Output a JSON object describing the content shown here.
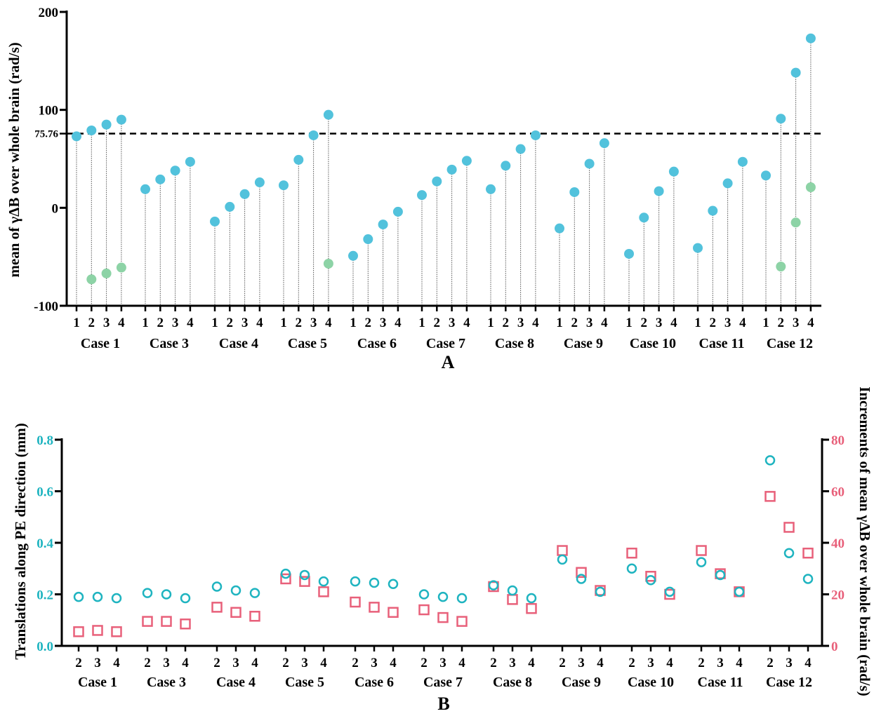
{
  "chart_data": [
    {
      "panel": "A",
      "type": "scatter",
      "ylabel": "mean of γΔB over whole brain (rad/s)",
      "ylim": [
        -100,
        200
      ],
      "yticks": [
        -100,
        0,
        100,
        200
      ],
      "reference_line": {
        "value": 75.76,
        "label": "75.76",
        "style": "dashed"
      },
      "cases": [
        {
          "label": "Case 1",
          "ticks": [
            "1",
            "2",
            "3",
            "4"
          ],
          "values": [
            73,
            79,
            85,
            90
          ],
          "low_values": [
            null,
            -73,
            -67,
            -61
          ]
        },
        {
          "label": "Case 3",
          "ticks": [
            "1",
            "2",
            "3",
            "4"
          ],
          "values": [
            19,
            29,
            38,
            47
          ],
          "low_values": [
            null,
            null,
            null,
            null
          ]
        },
        {
          "label": "Case 4",
          "ticks": [
            "1",
            "2",
            "3",
            "4"
          ],
          "values": [
            -14,
            1,
            14,
            26
          ],
          "low_values": [
            null,
            null,
            null,
            null
          ]
        },
        {
          "label": "Case 5",
          "ticks": [
            "1",
            "2",
            "3",
            "4"
          ],
          "values": [
            23,
            49,
            74,
            95
          ],
          "low_values": [
            null,
            null,
            null,
            -57
          ]
        },
        {
          "label": "Case 6",
          "ticks": [
            "1",
            "2",
            "3",
            "4"
          ],
          "values": [
            -49,
            -32,
            -17,
            -4
          ],
          "low_values": [
            null,
            null,
            null,
            null
          ]
        },
        {
          "label": "Case 7",
          "ticks": [
            "1",
            "2",
            "3",
            "4"
          ],
          "values": [
            13,
            27,
            39,
            48
          ],
          "low_values": [
            null,
            null,
            null,
            null
          ]
        },
        {
          "label": "Case 8",
          "ticks": [
            "1",
            "2",
            "3",
            "4"
          ],
          "values": [
            19,
            43,
            60,
            74
          ],
          "low_values": [
            null,
            null,
            null,
            null
          ]
        },
        {
          "label": "Case 9",
          "ticks": [
            "1",
            "2",
            "3",
            "4"
          ],
          "values": [
            -21,
            16,
            45,
            66
          ],
          "low_values": [
            null,
            null,
            null,
            null
          ]
        },
        {
          "label": "Case 10",
          "ticks": [
            "1",
            "2",
            "3",
            "4"
          ],
          "values": [
            -47,
            -10,
            17,
            37
          ],
          "low_values": [
            null,
            null,
            null,
            null
          ]
        },
        {
          "label": "Case 11",
          "ticks": [
            "1",
            "2",
            "3",
            "4"
          ],
          "values": [
            -41,
            -3,
            25,
            47
          ],
          "low_values": [
            null,
            null,
            null,
            null
          ]
        },
        {
          "label": "Case 12",
          "ticks": [
            "1",
            "2",
            "3",
            "4"
          ],
          "values": [
            33,
            91,
            138,
            173
          ],
          "low_values": [
            null,
            -60,
            -15,
            21
          ]
        }
      ],
      "colors": {
        "values": "#52c2dc",
        "low_values": "#8dd3a6"
      }
    },
    {
      "panel": "B",
      "type": "scatter",
      "ylabel_left": "Translations along PE direction (mm)",
      "ylabel_right": "Increments of mean γΔB over whole brain (rad/s)",
      "ylim_left": [
        0.0,
        0.8
      ],
      "ylim_right": [
        0,
        80
      ],
      "yticks_left": [
        "0.0",
        "0.2",
        "0.4",
        "0.6",
        "0.8"
      ],
      "yticks_right": [
        "0",
        "20",
        "40",
        "60",
        "80"
      ],
      "cases": [
        {
          "label": "Case 1",
          "ticks": [
            "2",
            "3",
            "4"
          ],
          "translation": [
            0.19,
            0.19,
            0.185
          ],
          "increment": [
            5.5,
            6,
            5.5
          ]
        },
        {
          "label": "Case 3",
          "ticks": [
            "2",
            "3",
            "4"
          ],
          "translation": [
            0.205,
            0.2,
            0.185
          ],
          "increment": [
            9.5,
            9.5,
            8.5
          ]
        },
        {
          "label": "Case 4",
          "ticks": [
            "2",
            "3",
            "4"
          ],
          "translation": [
            0.23,
            0.215,
            0.205
          ],
          "increment": [
            15,
            13,
            11.5
          ]
        },
        {
          "label": "Case 5",
          "ticks": [
            "2",
            "3",
            "4"
          ],
          "translation": [
            0.28,
            0.275,
            0.25
          ],
          "increment": [
            26,
            25,
            21
          ]
        },
        {
          "label": "Case 6",
          "ticks": [
            "2",
            "3",
            "4"
          ],
          "translation": [
            0.25,
            0.245,
            0.24
          ],
          "increment": [
            17,
            15,
            13
          ]
        },
        {
          "label": "Case 7",
          "ticks": [
            "2",
            "3",
            "4"
          ],
          "translation": [
            0.2,
            0.19,
            0.185
          ],
          "increment": [
            14,
            11,
            9.5
          ]
        },
        {
          "label": "Case 8",
          "ticks": [
            "2",
            "3",
            "4"
          ],
          "translation": [
            0.235,
            0.215,
            0.185
          ],
          "increment": [
            23,
            18,
            14.5
          ]
        },
        {
          "label": "Case 9",
          "ticks": [
            "2",
            "3",
            "4"
          ],
          "translation": [
            0.335,
            0.26,
            0.21
          ],
          "increment": [
            37,
            28.5,
            21.5
          ]
        },
        {
          "label": "Case 10",
          "ticks": [
            "2",
            "3",
            "4"
          ],
          "translation": [
            0.3,
            0.255,
            0.21
          ],
          "increment": [
            36,
            27,
            20
          ]
        },
        {
          "label": "Case 11",
          "ticks": [
            "2",
            "3",
            "4"
          ],
          "translation": [
            0.325,
            0.275,
            0.21
          ],
          "increment": [
            37,
            28,
            21
          ]
        },
        {
          "label": "Case 12",
          "ticks": [
            "2",
            "3",
            "4"
          ],
          "translation": [
            0.72,
            0.36,
            0.26
          ],
          "increment": [
            58,
            46,
            36
          ]
        }
      ],
      "colors": {
        "translation": "#1fb4c0",
        "increment": "#e8607a"
      }
    }
  ]
}
